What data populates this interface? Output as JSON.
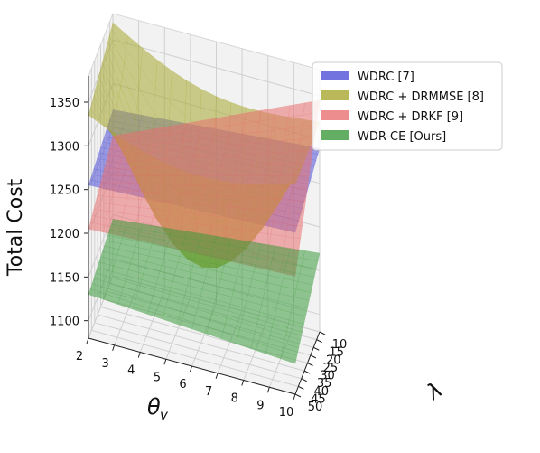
{
  "chart_data": {
    "type": "surface3d",
    "title": "",
    "zlabel": "Total Cost",
    "xlabel": "θ_v",
    "ylabel": "λ",
    "x_ticks": [
      "2",
      "3",
      "4",
      "5",
      "6",
      "7",
      "8",
      "9",
      "10"
    ],
    "y_ticks": [
      "10",
      "15",
      "20",
      "25",
      "30",
      "35",
      "40",
      "45",
      "50"
    ],
    "z_ticks": [
      "1100",
      "1150",
      "1200",
      "1250",
      "1300",
      "1350"
    ],
    "xlim": [
      2,
      10
    ],
    "ylim": [
      10,
      50
    ],
    "zlim": [
      1080,
      1380
    ],
    "grid": true,
    "legend_position": "top-right",
    "series": [
      {
        "name": "WDRC [7]",
        "color": "#5050d8",
        "corners": {
          "x2_y50": 1255,
          "x2_y10": 1270,
          "x10_y10": 1290,
          "x10_y50": 1265
        }
      },
      {
        "name": "WDRC + DRMMSE [8]",
        "color": "#a8a830",
        "corners": {
          "x2_y50": 1335,
          "x2_y10": 1370,
          "x10_y10": 1320,
          "x10_y50": 1320
        },
        "min_value": 1150
      },
      {
        "name": "WDRC + DRKF [9]",
        "color": "#e87070",
        "corners": {
          "x2_y50": 1205,
          "x2_y10": 1240,
          "x10_y10": 1345,
          "x10_y50": 1215
        }
      },
      {
        "name": "WDR-CE [Ours]",
        "color": "#3c9a3c",
        "corners": {
          "x2_y50": 1130,
          "x2_y10": 1145,
          "x10_y10": 1170,
          "x10_y50": 1115
        }
      }
    ]
  }
}
